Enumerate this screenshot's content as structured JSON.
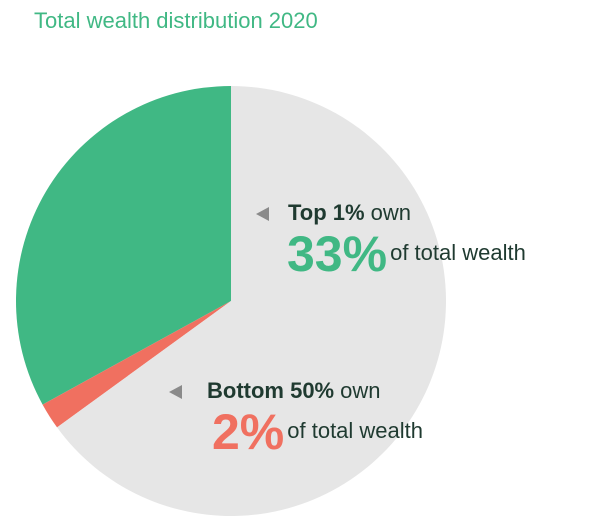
{
  "chart_data": {
    "type": "pie",
    "title": "Total wealth distribution 2020",
    "title_color": "#40b884",
    "categories": [
      "Top 1%",
      "Bottom 50%",
      null
    ],
    "values": [
      33,
      2,
      65
    ],
    "value_labels": [
      "33%",
      "2%",
      null
    ],
    "category_suffix": [
      "own",
      "own",
      null
    ],
    "value_suffix": [
      "of total wealth",
      "of total wealth",
      null
    ],
    "colors": [
      "#40b884",
      "#f07060",
      "#e6e6e6"
    ],
    "start": "top",
    "direction": "counterclockwise"
  }
}
